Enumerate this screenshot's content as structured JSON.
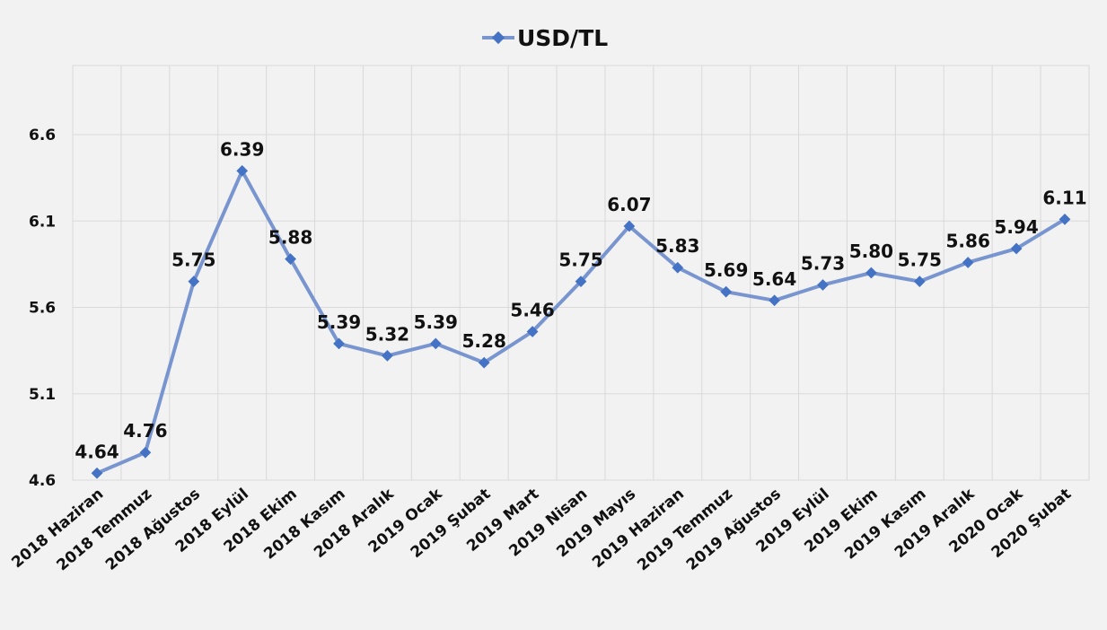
{
  "chart_data": {
    "type": "line",
    "categories": [
      "2018 Haziran",
      "2018 Temmuz",
      "2018 Ağustos",
      "2018 Eylül",
      "2018 Ekim",
      "2018 Kasım",
      "2018 Aralık",
      "2019 Ocak",
      "2019 Şubat",
      "2019 Mart",
      "2019 Nisan",
      "2019 Mayıs",
      "2019 Haziran",
      "2019 Temmuz",
      "2019 Ağustos",
      "2019 Eylül",
      "2019 Ekim",
      "2019 Kasım",
      "2019 Aralık",
      "2020 Ocak",
      "2020 Şubat"
    ],
    "series": [
      {
        "name": "USD/TL",
        "values": [
          4.64,
          4.76,
          5.75,
          6.39,
          5.88,
          5.39,
          5.32,
          5.39,
          5.28,
          5.46,
          5.75,
          6.07,
          5.83,
          5.69,
          5.64,
          5.73,
          5.8,
          5.75,
          5.86,
          5.94,
          6.11
        ],
        "labels": [
          "4.64",
          "4.76",
          "5.75",
          "6.39",
          "5.88",
          "5.39",
          "5.32",
          "5.39",
          "5.28",
          "5.46",
          "5.75",
          "6.07",
          "5.83",
          "5.69",
          "5.64",
          "5.73",
          "5.80",
          "5.75",
          "5.86",
          "5.94",
          "6.11"
        ]
      }
    ],
    "yticks": [
      4.6,
      5.1,
      5.6,
      6.1,
      6.6
    ],
    "ytick_labels": [
      "4.6",
      "5.1",
      "5.6",
      "6.1",
      "6.6"
    ],
    "ylim": [
      4.6,
      7.0
    ],
    "grid": true,
    "legend": "top-center",
    "colors": {
      "line": "#7895cf",
      "marker": "#4472c4",
      "grid": "#d9d9d9"
    }
  }
}
